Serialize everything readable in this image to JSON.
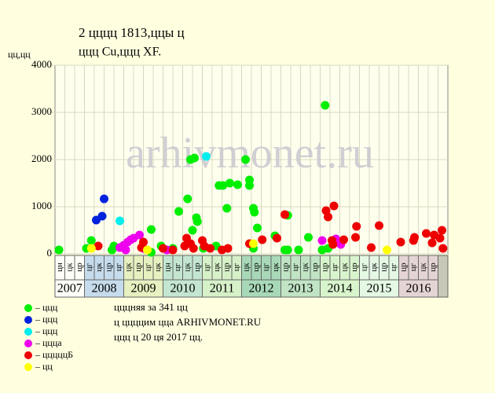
{
  "chart_data": {
    "type": "scatter",
    "title": "2 цццц 1813,ццы ц",
    "subtitle": "ццц Cu,ццц XF.",
    "y_label": "цц,цц",
    "watermark": "arhivmonet.ru",
    "xlim": [
      0,
      40
    ],
    "ylim": [
      0,
      4000
    ],
    "yticks": [
      0,
      1000,
      2000,
      3000,
      4000
    ],
    "years": [
      {
        "label": "2007",
        "color": "#fffff8",
        "periods": [
          "цн",
          "цк",
          "цр"
        ]
      },
      {
        "label": "2008",
        "color": "#c6dcec",
        "periods": [
          "цг",
          "цк",
          "цр",
          "цг"
        ]
      },
      {
        "label": "2009",
        "color": "#e6f0c0",
        "periods": [
          "цк",
          "цр",
          "цг",
          "цк"
        ]
      },
      {
        "label": "2010",
        "color": "#c4e6d0",
        "periods": [
          "цн",
          "цг",
          "цк",
          "цр"
        ]
      },
      {
        "label": "2011",
        "color": "#d6f0c8",
        "periods": [
          "цг",
          "цк",
          "цр",
          "цг"
        ]
      },
      {
        "label": "2012",
        "color": "#a8d8b8",
        "periods": [
          "цк",
          "цр",
          "цг",
          "цк"
        ]
      },
      {
        "label": "2013",
        "color": "#c0e4c4",
        "periods": [
          "цр",
          "цг",
          "цк",
          "цр"
        ]
      },
      {
        "label": "2014",
        "color": "#d8f4cc",
        "periods": [
          "цр",
          "цг",
          "цк",
          "цр"
        ]
      },
      {
        "label": "2015",
        "color": "#e4f8e4",
        "periods": [
          "цг",
          "цк",
          "цр",
          "цг"
        ]
      },
      {
        "label": "2016",
        "color": "#e4d4d4",
        "periods": [
          "цр",
          "цг",
          "цк",
          "цр"
        ]
      }
    ],
    "series": [
      {
        "name": "– ццц",
        "color": "#00ee00",
        "x": [
          0.4,
          3.2,
          3.7,
          6,
          5.8,
          9.8,
          9.8,
          10.8,
          12,
          12.6,
          13.5,
          13.8,
          14.2,
          14,
          14.4,
          14.5,
          15.1,
          16.4,
          16.7,
          17.1,
          17.5,
          17.8,
          18.6,
          19.4,
          19.8,
          19.8,
          20.2,
          20.3,
          20.6,
          20.2,
          22.4,
          23.4,
          23.7,
          23.7,
          24.8,
          25.8,
          27.2,
          27.5,
          27.8
        ],
        "values": [
          83,
          117,
          283,
          167,
          83,
          33,
          517,
          167,
          117,
          900,
          1167,
          2000,
          2033,
          500,
          767,
          683,
          117,
          167,
          1450,
          1450,
          967,
          1500,
          1467,
          2000,
          1567,
          1450,
          967,
          883,
          550,
          117,
          383,
          83,
          83,
          817,
          83,
          350,
          83,
          3150,
          117
        ]
      },
      {
        "name": "– ццц",
        "color": "#0022dd",
        "x": [
          4.2,
          4.8,
          5
        ],
        "values": [
          717,
          800,
          1167
        ]
      },
      {
        "name": "– ццц",
        "color": "#00eeee",
        "x": [
          6.6,
          15.4
        ],
        "values": [
          700,
          2067
        ]
      },
      {
        "name": "– цццa",
        "color": "#ee00ee",
        "x": [
          6.6,
          7,
          7.2,
          7.4,
          7.7,
          8,
          8.6,
          9,
          11.4,
          27.2,
          28.6,
          29.1
        ],
        "values": [
          133,
          183,
          83,
          250,
          300,
          333,
          400,
          117,
          83,
          283,
          317,
          200
        ]
      },
      {
        "name": "– цццццБ",
        "color": "#ee0000",
        "x": [
          4.4,
          8.8,
          9,
          11,
          12,
          13.2,
          13.4,
          13.8,
          14.1,
          15,
          15.2,
          15.8,
          17,
          17.6,
          19.8,
          21.1,
          22.6,
          23.4,
          27.6,
          27.8,
          28.4,
          28.2,
          28.3,
          29.4,
          30.6,
          30.7,
          32.2,
          33,
          35.2,
          36.5,
          36.6,
          37.8,
          38.4,
          38.6,
          39.2,
          39.4,
          39.5
        ],
        "values": [
          167,
          133,
          250,
          117,
          83,
          167,
          333,
          217,
          117,
          283,
          167,
          117,
          83,
          117,
          217,
          300,
          333,
          833,
          917,
          783,
          1017,
          283,
          200,
          300,
          350,
          583,
          133,
          600,
          250,
          283,
          350,
          433,
          233,
          400,
          333,
          500,
          117
        ]
      },
      {
        "name": "– цц",
        "color": "#ffff00",
        "x": [
          3.7,
          9.4,
          20.2,
          33.8
        ],
        "values": [
          117,
          83,
          217,
          83
        ]
      }
    ],
    "notes": [
      "цццняя за 341 цц",
      "ц ццццим цца ARHIVMONET.RU",
      "ццц ц 20 ця 2017 цц."
    ]
  }
}
